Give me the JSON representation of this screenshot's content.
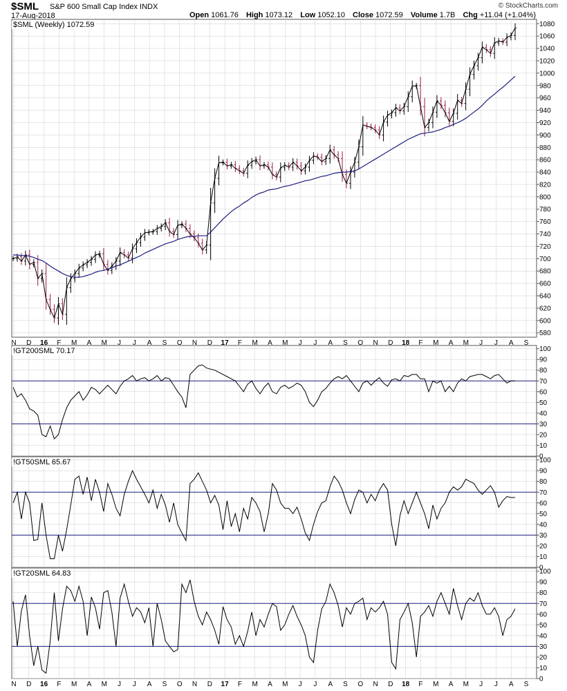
{
  "header": {
    "ticker": "$SML",
    "index_name": "S&P 600 Small Cap Index INDX",
    "date": "17-Aug-2018",
    "credit": "© StockCharts.com",
    "open_label": "Open",
    "open": "1061.76",
    "high_label": "High",
    "high": "1073.12",
    "low_label": "Low",
    "low": "1052.10",
    "close_label": "Close",
    "close": "1072.59",
    "volume_label": "Volume",
    "volume": "1.7B",
    "chg_label": "Chg",
    "chg": "+11.04 (+1.04%)"
  },
  "colors": {
    "up": "#000000",
    "down": "#9b1c4b",
    "ma": "#1c1c80",
    "ref_line": "#1c1c80",
    "indicator": "#000000",
    "grid": "#cccccc",
    "axis": "#555555"
  },
  "chart_data": [
    {
      "type": "line",
      "title": "$SML (Weekly) 1072.59",
      "ylim": [
        573,
        1087
      ],
      "y_ticks": [
        580,
        600,
        620,
        640,
        660,
        680,
        700,
        720,
        740,
        760,
        780,
        800,
        820,
        840,
        860,
        880,
        900,
        920,
        940,
        960,
        980,
        1000,
        1020,
        1040,
        1060,
        1080
      ],
      "x_ticks": [
        "N",
        "D",
        "16",
        "F",
        "M",
        "A",
        "M",
        "J",
        "J",
        "A",
        "S",
        "O",
        "N",
        "D",
        "17",
        "F",
        "M",
        "A",
        "M",
        "J",
        "J",
        "A",
        "S",
        "O",
        "N",
        "D",
        "18",
        "F",
        "M",
        "A",
        "M",
        "J",
        "J",
        "A",
        "S"
      ],
      "x_ticks_bold": [
        "16",
        "17",
        "18"
      ],
      "series": [
        {
          "values": [
            700,
            703,
            696,
            706,
            691,
            694,
            668,
            676,
            634,
            618,
            604,
            627,
            610,
            653,
            668,
            676,
            685,
            690,
            694,
            699,
            706,
            708,
            691,
            681,
            688,
            696,
            710,
            706,
            701,
            716,
            726,
            735,
            742,
            743,
            744,
            749,
            752,
            758,
            744,
            739,
            754,
            756,
            749,
            740,
            734,
            725,
            714,
            722,
            790,
            830,
            855,
            856,
            850,
            852,
            846,
            842,
            838,
            851,
            857,
            860,
            850,
            852,
            848,
            836,
            832,
            847,
            851,
            848,
            856,
            850,
            842,
            848,
            859,
            866,
            864,
            857,
            862,
            876,
            868,
            862,
            836,
            822,
            840,
            856,
            881,
            916,
            914,
            912,
            908,
            900,
            921,
            932,
            936,
            944,
            939,
            946,
            962,
            979,
            980,
            946,
            912,
            920,
            937,
            955,
            948,
            936,
            922,
            935,
            956,
            951,
            974,
            998,
            1012,
            1025,
            1042,
            1038,
            1032,
            1049,
            1052,
            1050,
            1058,
            1061,
            1073
          ]
        },
        {
          "values": [
            706,
            706,
            705,
            705,
            704,
            702,
            699,
            697,
            693,
            688,
            684,
            680,
            676,
            673,
            671,
            670,
            670,
            671,
            673,
            675,
            678,
            680,
            681,
            683,
            685,
            688,
            690,
            693,
            696,
            699,
            702,
            705,
            709,
            712,
            715,
            718,
            721,
            724,
            726,
            728,
            731,
            733,
            735,
            736,
            736,
            737,
            737,
            737,
            743,
            750,
            757,
            764,
            770,
            776,
            781,
            785,
            790,
            794,
            799,
            803,
            806,
            808,
            811,
            812,
            813,
            815,
            817,
            818,
            820,
            822,
            824,
            826,
            827,
            829,
            831,
            833,
            834,
            836,
            838,
            839,
            840,
            840,
            841,
            842,
            845,
            849,
            853,
            857,
            861,
            865,
            869,
            873,
            877,
            881,
            885,
            889,
            893,
            896,
            899,
            902,
            903,
            904,
            905,
            907,
            909,
            912,
            914,
            917,
            920,
            923,
            927,
            932,
            937,
            942,
            948,
            955,
            961,
            966,
            972,
            977,
            983,
            989,
            995
          ]
        }
      ]
    },
    {
      "type": "line",
      "title": "!GT200SML 70.17",
      "ylim": [
        0,
        103
      ],
      "y_ticks": [
        0,
        10,
        20,
        30,
        40,
        50,
        60,
        70,
        80,
        90,
        100
      ],
      "reference_lines": [
        30,
        70
      ],
      "series": [
        {
          "values": [
            64,
            55,
            58,
            52,
            44,
            42,
            38,
            20,
            18,
            28,
            16,
            20,
            34,
            45,
            52,
            56,
            60,
            52,
            57,
            64,
            62,
            58,
            62,
            66,
            62,
            58,
            65,
            70,
            72,
            75,
            70,
            72,
            73,
            70,
            72,
            75,
            70,
            73,
            72,
            66,
            60,
            55,
            45,
            76,
            80,
            84,
            85,
            82,
            81,
            80,
            78,
            76,
            74,
            72,
            70,
            65,
            60,
            67,
            70,
            63,
            58,
            64,
            68,
            60,
            58,
            64,
            66,
            63,
            65,
            68,
            66,
            60,
            50,
            46,
            52,
            60,
            63,
            68,
            72,
            74,
            72,
            75,
            70,
            65,
            60,
            68,
            70,
            66,
            70,
            73,
            68,
            65,
            71,
            72,
            70,
            75,
            74,
            76,
            76,
            72,
            72,
            60,
            70,
            68,
            70,
            60,
            65,
            60,
            68,
            72,
            70,
            74,
            75,
            76,
            76,
            74,
            72,
            75,
            76,
            72,
            68,
            70,
            70
          ]
        }
      ]
    },
    {
      "type": "line",
      "title": "!GT50SML 65.67",
      "ylim": [
        0,
        103
      ],
      "y_ticks": [
        0,
        10,
        20,
        30,
        40,
        50,
        60,
        70,
        80,
        90,
        100
      ],
      "reference_lines": [
        30,
        70
      ],
      "series": [
        {
          "values": [
            60,
            70,
            45,
            70,
            60,
            25,
            26,
            60,
            30,
            8,
            8,
            30,
            15,
            35,
            58,
            82,
            85,
            68,
            84,
            62,
            82,
            70,
            52,
            78,
            68,
            55,
            48,
            68,
            80,
            90,
            82,
            75,
            68,
            60,
            72,
            55,
            68,
            58,
            42,
            60,
            40,
            32,
            25,
            78,
            82,
            88,
            80,
            72,
            60,
            67,
            58,
            35,
            62,
            38,
            50,
            33,
            55,
            45,
            65,
            60,
            52,
            33,
            50,
            78,
            72,
            60,
            55,
            55,
            50,
            56,
            45,
            32,
            25,
            40,
            52,
            60,
            62,
            75,
            85,
            80,
            72,
            60,
            50,
            63,
            72,
            70,
            60,
            68,
            62,
            72,
            78,
            72,
            40,
            20,
            48,
            62,
            50,
            60,
            70,
            60,
            50,
            36,
            58,
            45,
            55,
            60,
            70,
            75,
            72,
            75,
            82,
            80,
            78,
            72,
            68,
            72,
            76,
            70,
            56,
            62,
            66,
            65,
            65
          ]
        }
      ]
    },
    {
      "type": "line",
      "title": "!GT20SML 64.83",
      "ylim": [
        0,
        103
      ],
      "y_ticks": [
        0,
        10,
        20,
        30,
        40,
        50,
        60,
        70,
        80,
        90,
        100
      ],
      "reference_lines": [
        30,
        70
      ],
      "series": [
        {
          "values": [
            72,
            30,
            63,
            78,
            40,
            12,
            30,
            8,
            5,
            35,
            80,
            35,
            65,
            86,
            82,
            72,
            86,
            72,
            40,
            76,
            66,
            46,
            80,
            82,
            62,
            30,
            75,
            88,
            72,
            58,
            66,
            62,
            52,
            66,
            30,
            70,
            55,
            35,
            30,
            25,
            27,
            88,
            80,
            92,
            72,
            58,
            50,
            62,
            55,
            45,
            32,
            67,
            55,
            48,
            32,
            40,
            30,
            44,
            62,
            40,
            55,
            48,
            60,
            70,
            67,
            45,
            50,
            60,
            68,
            58,
            50,
            40,
            20,
            15,
            45,
            65,
            72,
            88,
            80,
            68,
            48,
            66,
            60,
            70,
            72,
            75,
            55,
            66,
            62,
            66,
            72,
            60,
            15,
            9,
            55,
            62,
            70,
            52,
            20,
            58,
            62,
            68,
            58,
            72,
            80,
            70,
            60,
            84,
            68,
            55,
            70,
            75,
            72,
            80,
            68,
            60,
            60,
            66,
            58,
            40,
            55,
            58,
            65
          ]
        }
      ]
    }
  ]
}
